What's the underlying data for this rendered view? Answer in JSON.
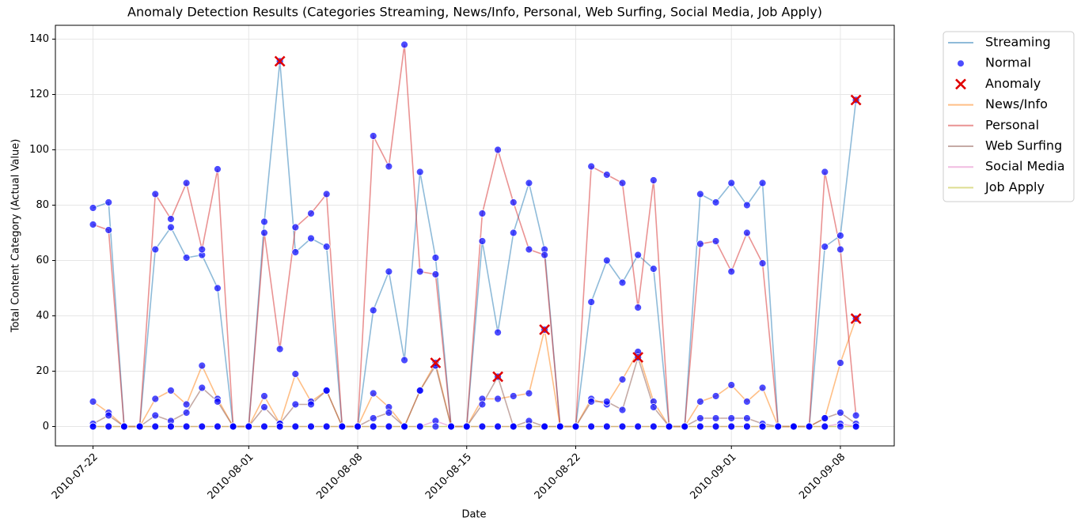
{
  "chart_data": {
    "type": "line",
    "title": "Anomaly Detection Results (Categories Streaming, News/Info, Personal, Web Surfing, Social Media, Job Apply)",
    "x_label": "Date",
    "y_label": "Total Content Category (Actual Value)",
    "x": [
      "2010-07-22",
      "2010-07-23",
      "2010-07-24",
      "2010-07-25",
      "2010-07-26",
      "2010-07-27",
      "2010-07-28",
      "2010-07-29",
      "2010-07-30",
      "2010-07-31",
      "2010-08-01",
      "2010-08-02",
      "2010-08-03",
      "2010-08-04",
      "2010-08-05",
      "2010-08-06",
      "2010-08-07",
      "2010-08-08",
      "2010-08-09",
      "2010-08-10",
      "2010-08-11",
      "2010-08-12",
      "2010-08-13",
      "2010-08-14",
      "2010-08-15",
      "2010-08-16",
      "2010-08-17",
      "2010-08-18",
      "2010-08-19",
      "2010-08-20",
      "2010-08-21",
      "2010-08-22",
      "2010-08-23",
      "2010-08-24",
      "2010-08-25",
      "2010-08-26",
      "2010-08-27",
      "2010-08-28",
      "2010-08-29",
      "2010-08-30",
      "2010-08-31",
      "2010-09-01",
      "2010-09-02",
      "2010-09-03",
      "2010-09-04",
      "2010-09-05",
      "2010-09-06",
      "2010-09-07",
      "2010-09-08",
      "2010-09-09"
    ],
    "xlim": [
      "2010-07-19T14:00",
      "2010-09-11T11:00"
    ],
    "xticks": [
      "2010-07-22",
      "2010-08-01",
      "2010-08-08",
      "2010-08-15",
      "2010-08-22",
      "2010-09-01",
      "2010-09-08"
    ],
    "ylim": [
      -7,
      145
    ],
    "yticks": [
      0,
      20,
      40,
      60,
      80,
      100,
      120,
      140
    ],
    "grid": true,
    "legend": "outside-upper-right",
    "series": [
      {
        "name": "Streaming",
        "type": "line",
        "color": "#1f77b4",
        "values": [
          79,
          81,
          0,
          0,
          64,
          72,
          61,
          62,
          50,
          0,
          0,
          74,
          132,
          63,
          68,
          65,
          0,
          0,
          42,
          56,
          24,
          92,
          61,
          0,
          0,
          67,
          34,
          70,
          88,
          64,
          0,
          0,
          45,
          60,
          52,
          62,
          57,
          0,
          0,
          84,
          81,
          88,
          80,
          88,
          0,
          0,
          0,
          65,
          69,
          118
        ]
      },
      {
        "name": "Normal",
        "type": "scatter",
        "color": "#0000ff"
      },
      {
        "name": "Anomaly",
        "type": "scatter",
        "color": "#e00000",
        "x": [
          "2010-08-03",
          "2010-08-13",
          "2010-08-17",
          "2010-08-20",
          "2010-08-26",
          "2010-09-09",
          "2010-09-09"
        ],
        "values": [
          132,
          23,
          18,
          35,
          25,
          118,
          39
        ]
      },
      {
        "name": "News/Info",
        "type": "line",
        "color": "#ff7f0e",
        "values": [
          9,
          5,
          0,
          0,
          10,
          13,
          8,
          22,
          10,
          0,
          0,
          11,
          1,
          19,
          9,
          13,
          0,
          0,
          12,
          7,
          0,
          13,
          23,
          0,
          0,
          10,
          10,
          11,
          12,
          35,
          0,
          0,
          10,
          8,
          17,
          27,
          9,
          0,
          0,
          9,
          11,
          15,
          9,
          14,
          0,
          0,
          0,
          3,
          23,
          39
        ]
      },
      {
        "name": "Personal",
        "type": "line",
        "color": "#d62728",
        "values": [
          73,
          71,
          0,
          0,
          84,
          75,
          88,
          64,
          93,
          0,
          0,
          70,
          28,
          72,
          77,
          84,
          0,
          0,
          105,
          94,
          138,
          56,
          55,
          0,
          0,
          77,
          100,
          81,
          64,
          62,
          0,
          0,
          94,
          91,
          88,
          43,
          89,
          0,
          0,
          66,
          67,
          56,
          70,
          59,
          0,
          0,
          0,
          92,
          64,
          4
        ]
      },
      {
        "name": "Web Surfing",
        "type": "line",
        "color": "#8c564b",
        "values": [
          1,
          4,
          0,
          0,
          4,
          2,
          5,
          14,
          9,
          0,
          0,
          7,
          1,
          8,
          8,
          13,
          0,
          0,
          3,
          5,
          0,
          13,
          22,
          0,
          0,
          8,
          18,
          0,
          2,
          0,
          0,
          0,
          9,
          9,
          6,
          25,
          7,
          0,
          0,
          3,
          3,
          3,
          3,
          1,
          0,
          0,
          0,
          3,
          5,
          1
        ]
      },
      {
        "name": "Social Media",
        "type": "line",
        "color": "#e377c2",
        "values": [
          0,
          0,
          0,
          0,
          0,
          0,
          0,
          0,
          0,
          0,
          0,
          0,
          0,
          0,
          0,
          0,
          0,
          0,
          0,
          0,
          0,
          0,
          2,
          0,
          0,
          0,
          0,
          0,
          0,
          0,
          0,
          0,
          0,
          0,
          0,
          0,
          0,
          0,
          0,
          0,
          0,
          0,
          0,
          0,
          0,
          0,
          0,
          0,
          1,
          0
        ]
      },
      {
        "name": "Job Apply",
        "type": "line",
        "color": "#bcbd22",
        "values": [
          0,
          0,
          0,
          0,
          0,
          0,
          0,
          0,
          0,
          0,
          0,
          0,
          0,
          0,
          0,
          0,
          0,
          0,
          0,
          0,
          0,
          0,
          0,
          0,
          0,
          0,
          0,
          0,
          0,
          0,
          0,
          0,
          0,
          0,
          0,
          0,
          0,
          0,
          0,
          0,
          0,
          0,
          0,
          0,
          0,
          0,
          0,
          0,
          0,
          0
        ]
      }
    ]
  }
}
